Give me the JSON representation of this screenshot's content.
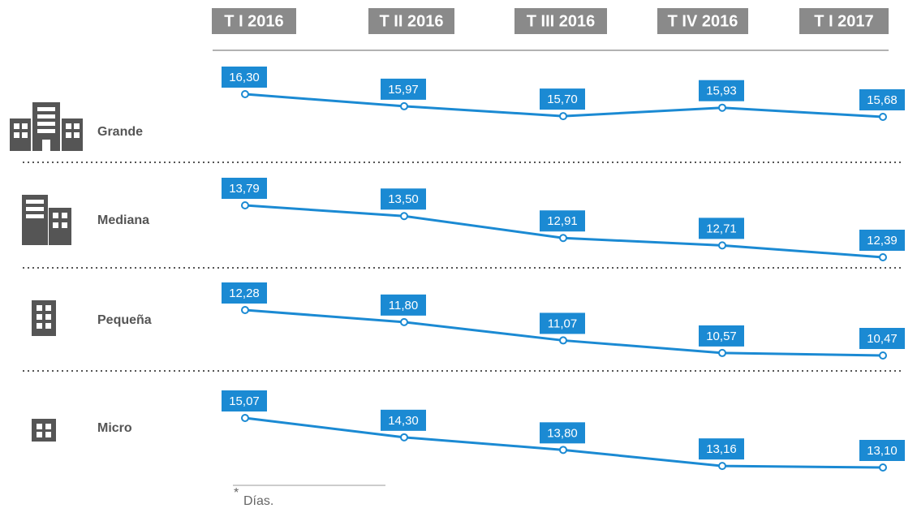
{
  "chart_data": {
    "type": "line",
    "categories": [
      "T I 2016",
      "T II 2016",
      "T III 2016",
      "T IV 2016",
      "T I 2017"
    ],
    "series": [
      {
        "name": "Grande",
        "color": "#1b8ad3",
        "values": [
          16.3,
          15.97,
          15.7,
          15.93,
          15.68
        ],
        "value_labels": [
          "16,30",
          "15,97",
          "15,70",
          "15,93",
          "15,68"
        ]
      },
      {
        "name": "Mediana",
        "color": "#1b8ad3",
        "values": [
          13.79,
          13.5,
          12.91,
          12.71,
          12.39
        ],
        "value_labels": [
          "13,79",
          "13,50",
          "12,91",
          "12,71",
          "12,39"
        ]
      },
      {
        "name": "Pequeña",
        "color": "#1b8ad3",
        "values": [
          12.28,
          11.8,
          11.07,
          10.57,
          10.47
        ],
        "value_labels": [
          "12,28",
          "11,80",
          "11,07",
          "10,57",
          "10,47"
        ]
      },
      {
        "name": "Micro",
        "color": "#1b8ad3",
        "values": [
          15.07,
          14.3,
          13.8,
          13.16,
          13.1
        ],
        "value_labels": [
          "15,07",
          "14,30",
          "13,80",
          "13,16",
          "13,10"
        ]
      }
    ],
    "note": "Días."
  }
}
